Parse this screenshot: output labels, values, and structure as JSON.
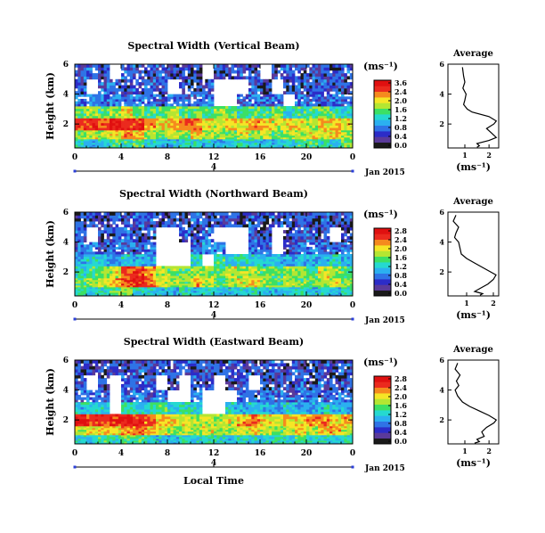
{
  "chart_data": [
    {
      "type": "heatmap",
      "title": "Spectral Width (Vertical Beam)",
      "ylabel": "Height (km)",
      "x_ticks": [
        "0",
        "4",
        "8",
        "12",
        "16",
        "20",
        "0"
      ],
      "y_ticks": [
        "2",
        "4",
        "6"
      ],
      "xlim": [
        0,
        24
      ],
      "ylim": [
        0.4,
        6
      ],
      "date_label": "4",
      "date_caption": "Jan 2015",
      "colorbar": {
        "unit": "(ms⁻¹)",
        "ticks": [
          "3.6",
          "2.4",
          "2.0",
          "1.6",
          "1.2",
          "0.8",
          "0.4",
          "0.0"
        ]
      },
      "profile": {
        "title": "Average",
        "xlabel": "(ms⁻¹)",
        "x_ticks": [
          "1",
          "2"
        ],
        "y_ticks": [
          "2",
          "4",
          "6"
        ],
        "xlim": [
          0.3,
          2.4
        ],
        "x": [
          0.9,
          0.95,
          1.0,
          0.92,
          1.05,
          1.0,
          0.95,
          1.1,
          1.3,
          2.0,
          2.3,
          2.2,
          1.9,
          2.1,
          2.3,
          2.0,
          1.5,
          1.6,
          1.5
        ],
        "y": [
          5.8,
          5.2,
          4.8,
          4.4,
          4.0,
          3.6,
          3.3,
          3.0,
          2.8,
          2.5,
          2.2,
          2.0,
          1.7,
          1.4,
          1.1,
          0.9,
          0.7,
          0.55,
          0.45
        ]
      },
      "levels": [
        0.1,
        0.25,
        0.4,
        0.7,
        1.0,
        1.3,
        1.6,
        1.9,
        2.2,
        2.6,
        3.0
      ],
      "bands": [
        {
          "height_km": [
            0.4,
            1.0
          ],
          "values": [
            1.2,
            0.9,
            1.1,
            1.4,
            1.3,
            1.5,
            1.0,
            0.9,
            1.0,
            1.2,
            1.1,
            1.0,
            0.9,
            1.0,
            1.2,
            1.1,
            1.0,
            0.9,
            1.1,
            1.3,
            1.4,
            1.2,
            1.1,
            1.6
          ]
        },
        {
          "height_km": [
            1.0,
            1.6
          ],
          "values": [
            1.6,
            1.9,
            1.7,
            2.0,
            2.4,
            2.2,
            1.8,
            1.5,
            1.9,
            1.6,
            2.2,
            1.8,
            1.7,
            1.5,
            1.9,
            1.6,
            1.8,
            1.5,
            1.7,
            1.6,
            2.0,
            1.9,
            2.1,
            1.8
          ]
        },
        {
          "height_km": [
            1.6,
            2.4
          ],
          "values": [
            2.8,
            2.9,
            2.7,
            3.0,
            2.8,
            2.9,
            2.4,
            2.0,
            2.2,
            2.6,
            2.4,
            2.1,
            1.9,
            2.2,
            2.0,
            2.3,
            2.2,
            1.9,
            2.1,
            2.0,
            1.8,
            2.1,
            2.2,
            1.9
          ]
        },
        {
          "height_km": [
            2.4,
            3.2
          ],
          "values": [
            1.6,
            1.8,
            1.5,
            1.7,
            2.0,
            1.6,
            1.4,
            1.5,
            1.7,
            1.4,
            1.5,
            1.3,
            1.6,
            1.5,
            1.2,
            1.4,
            1.3,
            1.6,
            1.2,
            1.3,
            1.4,
            1.5,
            1.3,
            1.1
          ]
        },
        {
          "height_km": [
            3.2,
            4.0
          ],
          "values": [
            0.6,
            0.7,
            0.5,
            0.6,
            0.5,
            0.7,
            0.6,
            0.4,
            0.6,
            0.5,
            0.5,
            0.6,
            null,
            null,
            0.5,
            0.6,
            0.4,
            0.5,
            null,
            0.6,
            0.5,
            0.4,
            0.6,
            0.5
          ]
        },
        {
          "height_km": [
            4.0,
            5.0
          ],
          "values": [
            0.4,
            null,
            0.5,
            0.4,
            0.3,
            0.4,
            0.5,
            0.3,
            null,
            0.4,
            0.3,
            0.4,
            null,
            null,
            null,
            0.4,
            0.3,
            null,
            0.3,
            0.4,
            0.3,
            0.5,
            0.4,
            0.3
          ]
        },
        {
          "height_km": [
            5.0,
            6.0
          ],
          "values": [
            0.4,
            0.5,
            0.3,
            null,
            0.4,
            0.4,
            0.3,
            0.4,
            0.3,
            0.4,
            0.3,
            null,
            0.4,
            0.3,
            0.4,
            0.3,
            null,
            0.4,
            0.5,
            0.3,
            0.4,
            0.4,
            0.3,
            0.4
          ]
        }
      ]
    },
    {
      "type": "heatmap",
      "title": "Spectral Width (Northward Beam)",
      "ylabel": "Height (km)",
      "x_ticks": [
        "0",
        "4",
        "8",
        "12",
        "16",
        "20",
        "0"
      ],
      "y_ticks": [
        "2",
        "4",
        "6"
      ],
      "xlim": [
        0,
        24
      ],
      "ylim": [
        0.4,
        6
      ],
      "date_label": "4",
      "date_caption": "Jan 2015",
      "colorbar": {
        "unit": "(ms⁻¹)",
        "ticks": [
          "2.8",
          "2.4",
          "2.0",
          "1.6",
          "1.2",
          "0.8",
          "0.4",
          "0.0"
        ]
      },
      "profile": {
        "title": "Average",
        "xlabel": "(ms⁻¹)",
        "x_ticks": [
          "1",
          "2"
        ],
        "y_ticks": [
          "2",
          "4",
          "6"
        ],
        "xlim": [
          0.3,
          2.2
        ],
        "x": [
          0.6,
          0.5,
          0.7,
          0.6,
          0.55,
          0.7,
          0.75,
          0.8,
          1.0,
          1.3,
          1.6,
          1.9,
          2.1,
          2.0,
          1.8,
          1.5,
          1.3,
          1.6,
          1.5
        ],
        "y": [
          5.8,
          5.4,
          5.0,
          4.6,
          4.3,
          4.0,
          3.6,
          3.2,
          2.9,
          2.6,
          2.3,
          2.0,
          1.8,
          1.5,
          1.2,
          0.9,
          0.7,
          0.55,
          0.45
        ]
      },
      "levels": [
        0.1,
        0.25,
        0.4,
        0.7,
        1.0,
        1.3,
        1.6,
        1.9,
        2.2,
        2.5,
        2.8
      ],
      "bands": [
        {
          "height_km": [
            0.4,
            1.0
          ],
          "values": [
            1.3,
            1.0,
            1.2,
            1.5,
            1.6,
            1.2,
            1.1,
            1.0,
            0.9,
            1.2,
            1.0,
            1.1,
            0.9,
            1.0,
            1.1,
            1.2,
            1.0,
            0.9,
            1.1,
            1.2,
            1.0,
            1.1,
            0.9,
            1.2
          ]
        },
        {
          "height_km": [
            1.0,
            1.6
          ],
          "values": [
            1.5,
            1.7,
            1.9,
            2.2,
            2.6,
            2.8,
            2.4,
            1.9,
            1.7,
            1.6,
            2.2,
            1.8,
            1.5,
            1.7,
            1.9,
            2.1,
            1.7,
            1.5,
            1.8,
            1.6,
            1.5,
            1.7,
            1.9,
            1.6
          ]
        },
        {
          "height_km": [
            1.6,
            2.4
          ],
          "values": [
            1.2,
            1.3,
            1.5,
            1.9,
            2.6,
            2.7,
            2.3,
            1.8,
            1.6,
            1.5,
            1.8,
            1.6,
            1.4,
            1.9,
            1.7,
            1.8,
            1.6,
            1.4,
            1.7,
            1.6,
            1.5,
            1.9,
            1.7,
            1.4
          ]
        },
        {
          "height_km": [
            2.4,
            3.2
          ],
          "values": [
            0.8,
            1.0,
            0.9,
            0.7,
            1.0,
            0.9,
            0.8,
            null,
            null,
            null,
            1.2,
            null,
            1.3,
            1.0,
            1.2,
            1.1,
            0.9,
            1.0,
            0.8,
            0.9,
            0.8,
            1.0,
            1.1,
            0.9
          ]
        },
        {
          "height_km": [
            3.2,
            4.0
          ],
          "values": [
            0.5,
            0.6,
            0.4,
            0.6,
            0.5,
            0.4,
            0.6,
            null,
            null,
            null,
            0.5,
            0.7,
            0.6,
            null,
            null,
            0.6,
            0.5,
            null,
            0.4,
            0.5,
            0.6,
            0.5,
            0.4,
            0.5
          ]
        },
        {
          "height_km": [
            4.0,
            5.0
          ],
          "values": [
            0.4,
            null,
            0.3,
            0.4,
            0.5,
            0.3,
            0.4,
            null,
            null,
            0.4,
            0.3,
            0.5,
            null,
            null,
            null,
            0.4,
            0.3,
            null,
            0.3,
            0.4,
            0.4,
            0.3,
            null,
            0.3
          ]
        },
        {
          "height_km": [
            5.0,
            6.0
          ],
          "values": [
            0.3,
            0.4,
            0.3,
            0.4,
            0.3,
            0.5,
            0.4,
            0.3,
            0.4,
            0.3,
            0.4,
            0.3,
            0.3,
            0.4,
            0.3,
            0.4,
            0.3,
            0.4,
            0.3,
            0.4,
            0.3,
            0.4,
            0.3,
            0.4
          ]
        }
      ]
    },
    {
      "type": "heatmap",
      "title": "Spectral Width (Eastward Beam)",
      "ylabel": "Height (km)",
      "xlabel": "Local Time",
      "x_ticks": [
        "0",
        "4",
        "8",
        "12",
        "16",
        "20",
        "0"
      ],
      "y_ticks": [
        "2",
        "4",
        "6"
      ],
      "xlim": [
        0,
        24
      ],
      "ylim": [
        0.4,
        6
      ],
      "date_label": "4",
      "date_caption": "Jan 2015",
      "colorbar": {
        "unit": "(ms⁻¹)",
        "ticks": [
          "2.8",
          "2.4",
          "2.0",
          "1.6",
          "1.2",
          "0.8",
          "0.4",
          "0.0"
        ]
      },
      "profile": {
        "title": "Average",
        "xlabel": "(ms⁻¹)",
        "x_ticks": [
          "1",
          "2"
        ],
        "y_ticks": [
          "2",
          "4",
          "6"
        ],
        "xlim": [
          0.3,
          2.4
        ],
        "x": [
          0.7,
          0.6,
          0.8,
          0.65,
          0.75,
          0.6,
          0.7,
          0.9,
          1.2,
          1.6,
          2.0,
          2.3,
          2.2,
          1.9,
          1.7,
          1.8,
          1.5,
          1.6,
          1.4
        ],
        "y": [
          5.8,
          5.4,
          5.0,
          4.6,
          4.3,
          4.0,
          3.6,
          3.2,
          2.9,
          2.6,
          2.3,
          2.0,
          1.8,
          1.5,
          1.2,
          0.9,
          0.7,
          0.55,
          0.45
        ]
      },
      "levels": [
        0.1,
        0.25,
        0.4,
        0.7,
        1.0,
        1.3,
        1.6,
        1.9,
        2.2,
        2.5,
        2.8
      ],
      "bands": [
        {
          "height_km": [
            0.4,
            1.0
          ],
          "values": [
            1.1,
            1.0,
            1.3,
            1.2,
            1.5,
            1.4,
            1.1,
            1.0,
            0.9,
            1.1,
            1.0,
            1.2,
            1.1,
            1.0,
            1.2,
            1.1,
            1.0,
            1.2,
            1.1,
            1.3,
            1.2,
            1.1,
            1.0,
            1.3
          ]
        },
        {
          "height_km": [
            1.0,
            1.6
          ],
          "values": [
            1.8,
            2.0,
            2.2,
            2.0,
            2.4,
            2.5,
            2.2,
            1.9,
            1.7,
            1.8,
            1.7,
            1.9,
            1.6,
            1.7,
            1.9,
            2.0,
            1.8,
            1.6,
            1.9,
            2.1,
            1.8,
            2.0,
            2.2,
            1.9
          ]
        },
        {
          "height_km": [
            1.6,
            2.4
          ],
          "values": [
            2.8,
            2.7,
            2.6,
            2.8,
            2.9,
            2.8,
            2.5,
            2.2,
            2.0,
            1.9,
            1.7,
            1.8,
            1.6,
            1.9,
            2.2,
            2.4,
            2.1,
            1.9,
            2.2,
            2.0,
            2.3,
            2.4,
            2.1,
            2.2
          ]
        },
        {
          "height_km": [
            2.4,
            3.2
          ],
          "values": [
            1.0,
            1.2,
            1.0,
            null,
            1.3,
            1.1,
            1.2,
            1.4,
            1.0,
            1.2,
            1.1,
            null,
            null,
            1.0,
            0.8,
            1.0,
            0.9,
            0.8,
            1.0,
            0.9,
            0.8,
            1.0,
            0.9,
            0.8
          ]
        },
        {
          "height_km": [
            3.2,
            4.0
          ],
          "values": [
            0.5,
            0.6,
            0.4,
            null,
            0.5,
            0.6,
            0.4,
            0.5,
            null,
            null,
            0.6,
            null,
            null,
            null,
            0.5,
            0.4,
            0.6,
            0.5,
            0.4,
            0.5,
            0.6,
            0.4,
            0.5,
            0.4
          ]
        },
        {
          "height_km": [
            4.0,
            5.0
          ],
          "values": [
            0.4,
            null,
            0.3,
            null,
            0.4,
            0.3,
            0.4,
            null,
            0.3,
            null,
            0.4,
            0.3,
            null,
            0.3,
            0.4,
            null,
            0.3,
            0.4,
            0.3,
            0.4,
            0.3,
            0.4,
            0.3,
            0.4
          ]
        },
        {
          "height_km": [
            5.0,
            6.0
          ],
          "values": [
            0.3,
            0.4,
            0.3,
            0.4,
            0.3,
            0.4,
            0.3,
            0.4,
            0.3,
            0.4,
            0.3,
            0.4,
            0.3,
            0.4,
            0.3,
            0.4,
            0.3,
            0.4,
            0.3,
            0.4,
            0.3,
            0.4,
            0.3,
            0.4
          ]
        }
      ]
    }
  ]
}
